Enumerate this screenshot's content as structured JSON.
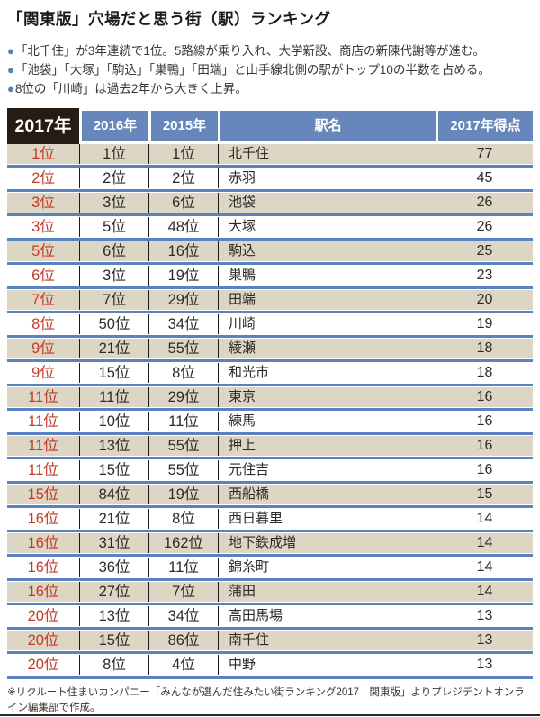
{
  "title": "「関東版」穴場だと思う街（駅）ランキング",
  "bullet_icon": "●",
  "bullets": [
    "「北千住」が3年連続で1位。5路線が乗り入れ、大学新設、商店の新陳代謝等が進む。",
    "「池袋」「大塚」「駒込」「巣鴨」「田端」と山手線北側の駅がトップ10の半数を占める。",
    "8位の「川崎」は過去2年から大きく上昇。"
  ],
  "chart_data": {
    "type": "table",
    "title": "「関東版」穴場だと思う街（駅）ランキング",
    "columns": [
      "2017年",
      "2016年",
      "2015年",
      "駅名",
      "2017年得点"
    ],
    "rows": [
      [
        "1位",
        "1位",
        "1位",
        "北千住",
        77
      ],
      [
        "2位",
        "2位",
        "2位",
        "赤羽",
        45
      ],
      [
        "3位",
        "3位",
        "6位",
        "池袋",
        26
      ],
      [
        "3位",
        "5位",
        "48位",
        "大塚",
        26
      ],
      [
        "5位",
        "6位",
        "16位",
        "駒込",
        25
      ],
      [
        "6位",
        "3位",
        "19位",
        "巣鴨",
        23
      ],
      [
        "7位",
        "7位",
        "29位",
        "田端",
        20
      ],
      [
        "8位",
        "50位",
        "34位",
        "川崎",
        19
      ],
      [
        "9位",
        "21位",
        "55位",
        "綾瀬",
        18
      ],
      [
        "9位",
        "15位",
        "8位",
        "和光市",
        18
      ],
      [
        "11位",
        "11位",
        "29位",
        "東京",
        16
      ],
      [
        "11位",
        "10位",
        "11位",
        "練馬",
        16
      ],
      [
        "11位",
        "13位",
        "55位",
        "押上",
        16
      ],
      [
        "11位",
        "15位",
        "55位",
        "元住吉",
        16
      ],
      [
        "15位",
        "84位",
        "19位",
        "西船橋",
        15
      ],
      [
        "16位",
        "21位",
        "8位",
        "西日暮里",
        14
      ],
      [
        "16位",
        "31位",
        "162位",
        "地下鉄成増",
        14
      ],
      [
        "16位",
        "36位",
        "11位",
        "錦糸町",
        14
      ],
      [
        "16位",
        "27位",
        "7位",
        "蒲田",
        14
      ],
      [
        "20位",
        "13位",
        "34位",
        "高田馬場",
        13
      ],
      [
        "20位",
        "15位",
        "86位",
        "南千住",
        13
      ],
      [
        "20位",
        "8位",
        "4位",
        "中野",
        13
      ]
    ]
  },
  "footnote": "※リクルート住まいカンパニー「みんなが選んだ住みたい街ランキング2017　関東版」よりプレジデントオンライン編集部で作成。",
  "colors": {
    "header_blue": "#6787bc",
    "header_dark": "#281b11",
    "row_beige": "#ded6c4",
    "separator_blue": "#5b82c0",
    "rank_red": "#c23a26",
    "text_dark": "#2d2a26"
  }
}
